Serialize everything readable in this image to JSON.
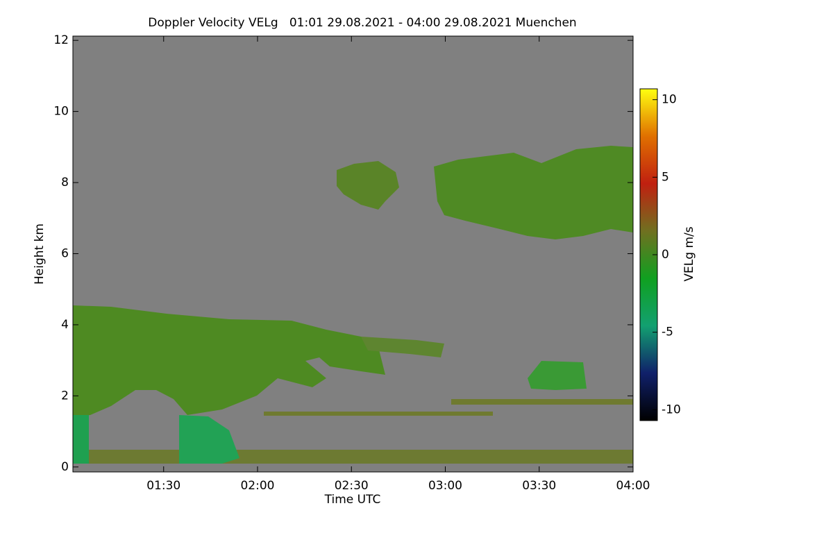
{
  "chart_data": {
    "type": "heatmap",
    "title": "Doppler Velocity VELg   01:01 29.08.2021 - 04:00 29.08.2021 Muenchen",
    "x_label": "Time UTC",
    "y_label": "Height km",
    "xlim": [
      61,
      240
    ],
    "xticks": [
      {
        "value": 90,
        "label": "01:30"
      },
      {
        "value": 120,
        "label": "02:00"
      },
      {
        "value": 150,
        "label": "02:30"
      },
      {
        "value": 180,
        "label": "03:00"
      },
      {
        "value": 210,
        "label": "03:30"
      },
      {
        "value": 240,
        "label": "04:00"
      }
    ],
    "ylim": [
      -0.14,
      12.12
    ],
    "yticks": [
      0,
      2,
      4,
      6,
      8,
      10,
      12
    ],
    "colorbar": {
      "label": "VELg m/s",
      "lim": [
        -10.7,
        10.7
      ],
      "ticks": [
        -10,
        -5,
        0,
        5,
        10
      ],
      "colormap": [
        "#000000",
        "#10206a",
        "#12a070",
        "#10a020",
        "#707020",
        "#c02010",
        "#e07000",
        "#ffff10"
      ]
    },
    "background": "#808080"
  }
}
